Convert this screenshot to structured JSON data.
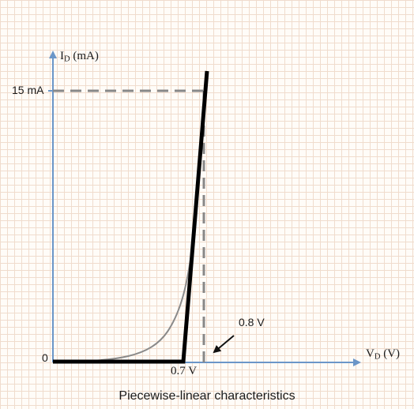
{
  "diagram": {
    "y_axis": {
      "label_main": "I",
      "label_sub": "D",
      "label_unit": "(mA)"
    },
    "x_axis": {
      "label_main": "V",
      "label_sub": "D",
      "label_unit": "(V)"
    },
    "origin_label": "0",
    "current_marker": "15 mA",
    "threshold_label": "0.7 V",
    "operating_voltage_label": "0.8 V",
    "caption": "Piecewise-linear characteristics",
    "colors": {
      "axis": "#6b96c8",
      "characteristic": "#000000",
      "actual_curve": "#8a8a8a",
      "guide_lines": "#888888",
      "grid": "#f0dccd"
    }
  }
}
